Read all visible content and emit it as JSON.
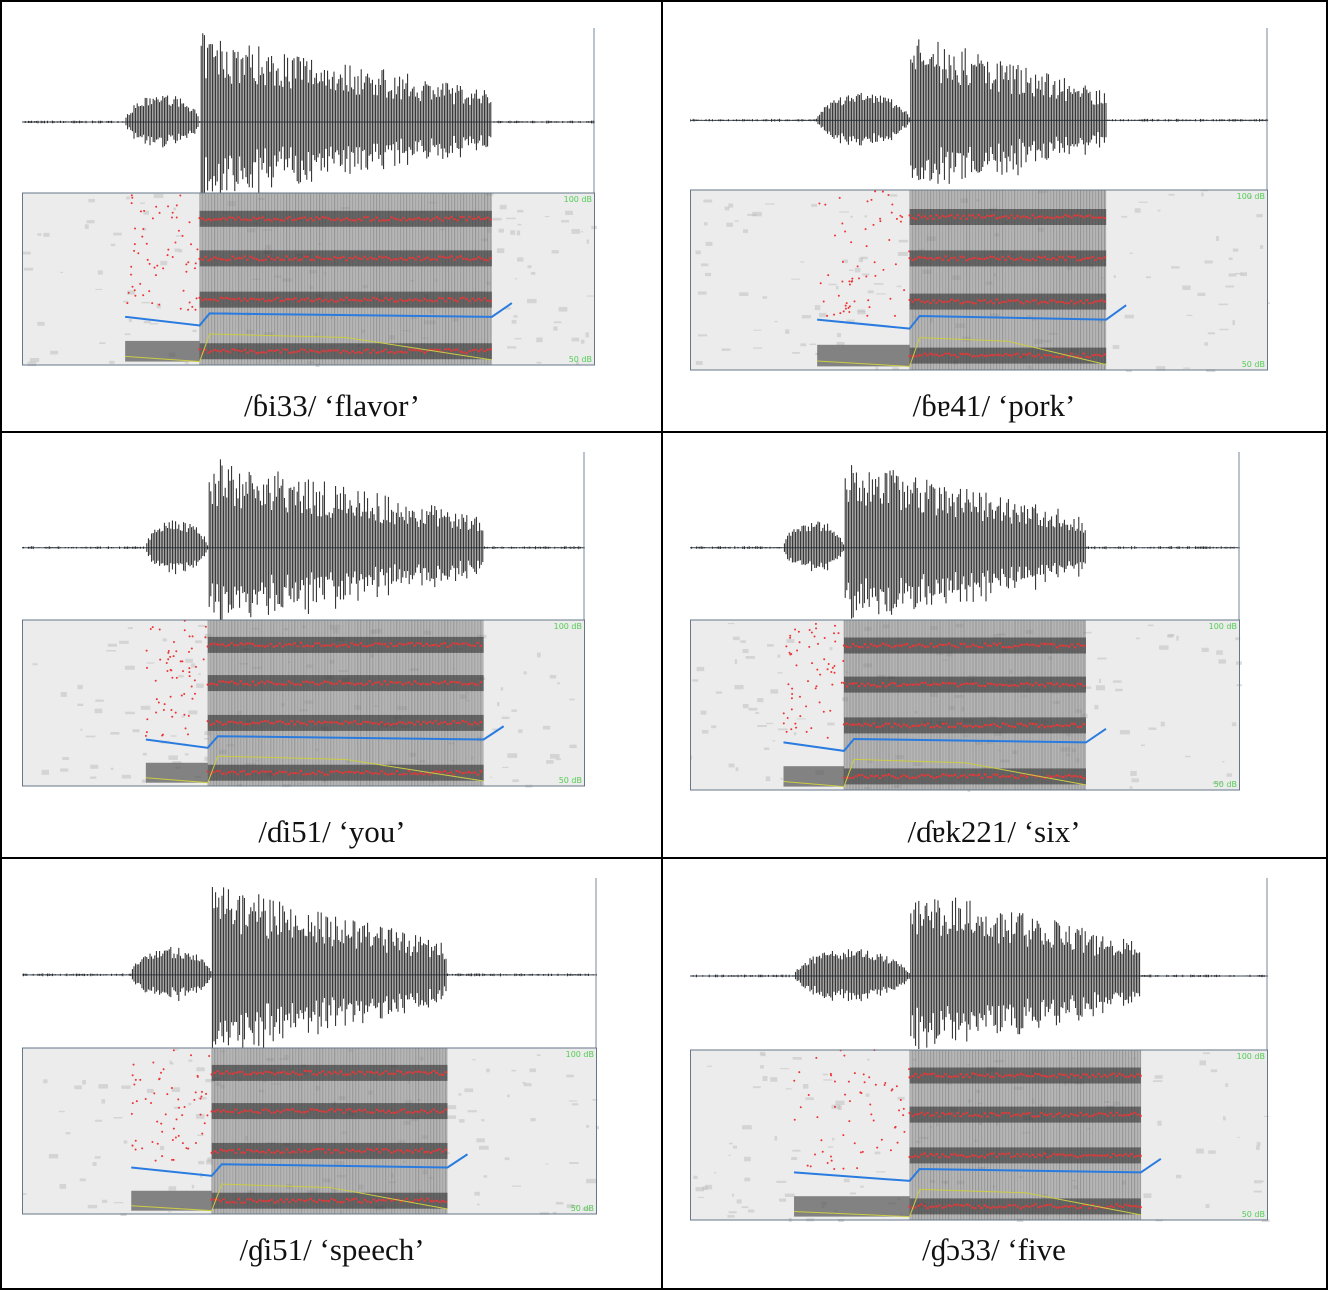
{
  "panels": [
    {
      "caption": "/ɓi33/ ‘flavor’",
      "scale_top": "100 dB",
      "scale_bottom": "50 dB"
    },
    {
      "caption": "/ɓɐ41/ ‘pork’",
      "scale_top": "100 dB",
      "scale_bottom": "50 dB"
    },
    {
      "caption": "/ɗi51/ ‘you’",
      "scale_top": "100 dB",
      "scale_bottom": "50 dB"
    },
    {
      "caption": "/ɗɐk221/ ‘six’",
      "scale_top": "100 dB",
      "scale_bottom": "50 dB"
    },
    {
      "caption": "/ɠi51/ ‘speech’",
      "scale_top": "100 dB",
      "scale_bottom": "50 dB"
    },
    {
      "caption": "/ɠɔ33/ ‘five",
      "scale_top": "100 dB",
      "scale_bottom": "50 dB"
    }
  ]
}
